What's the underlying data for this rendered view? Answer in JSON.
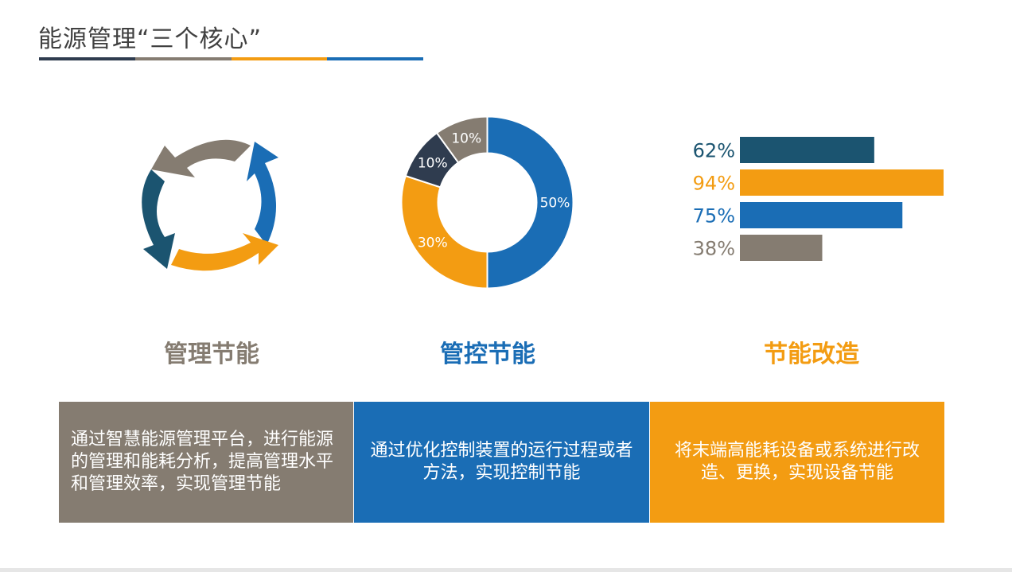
{
  "page": {
    "title": "能源管理“三个核心”",
    "title_bar_colors": [
      "#2f3c4f",
      "#857c71",
      "#f39c12",
      "#1a6db5"
    ]
  },
  "colors": {
    "dark_teal": "#1b5470",
    "orange": "#f39c12",
    "blue": "#1a6db5",
    "gray": "#857c71",
    "navy": "#2f3c4f"
  },
  "pillars": [
    {
      "title": "管理节能",
      "title_color": "#857c71",
      "card_color": "#857c71",
      "card_text": "通过智慧能源管理平台，进行能源的管理和能耗分析，提高管理水平和管理效率，实现管理节能",
      "icon": "recycle-arrows-icon"
    },
    {
      "title": "管控节能",
      "title_color": "#1a6db5",
      "card_color": "#1a6db5",
      "card_text": "通过优化控制装置的运行过程或者方法，实现控制节能"
    },
    {
      "title": "节能改造",
      "title_color": "#f39c12",
      "card_color": "#f39c12",
      "card_text": "将末端高能耗设备或系统进行改造、更换，实现设备节能"
    }
  ],
  "chart_data": [
    {
      "type": "pie",
      "labels": [
        "50%",
        "30%",
        "10%",
        "10%"
      ],
      "values": [
        50,
        30,
        10,
        10
      ],
      "colors": [
        "#1a6db5",
        "#f39c12",
        "#2f3c4f",
        "#857c71"
      ]
    },
    {
      "type": "bar",
      "orientation": "horizontal",
      "categories": [
        "62%",
        "94%",
        "75%",
        "38%"
      ],
      "values": [
        62,
        94,
        75,
        38
      ],
      "colors": [
        "#1b5470",
        "#f39c12",
        "#1a6db5",
        "#857c71"
      ],
      "xlim": [
        0,
        100
      ]
    }
  ]
}
